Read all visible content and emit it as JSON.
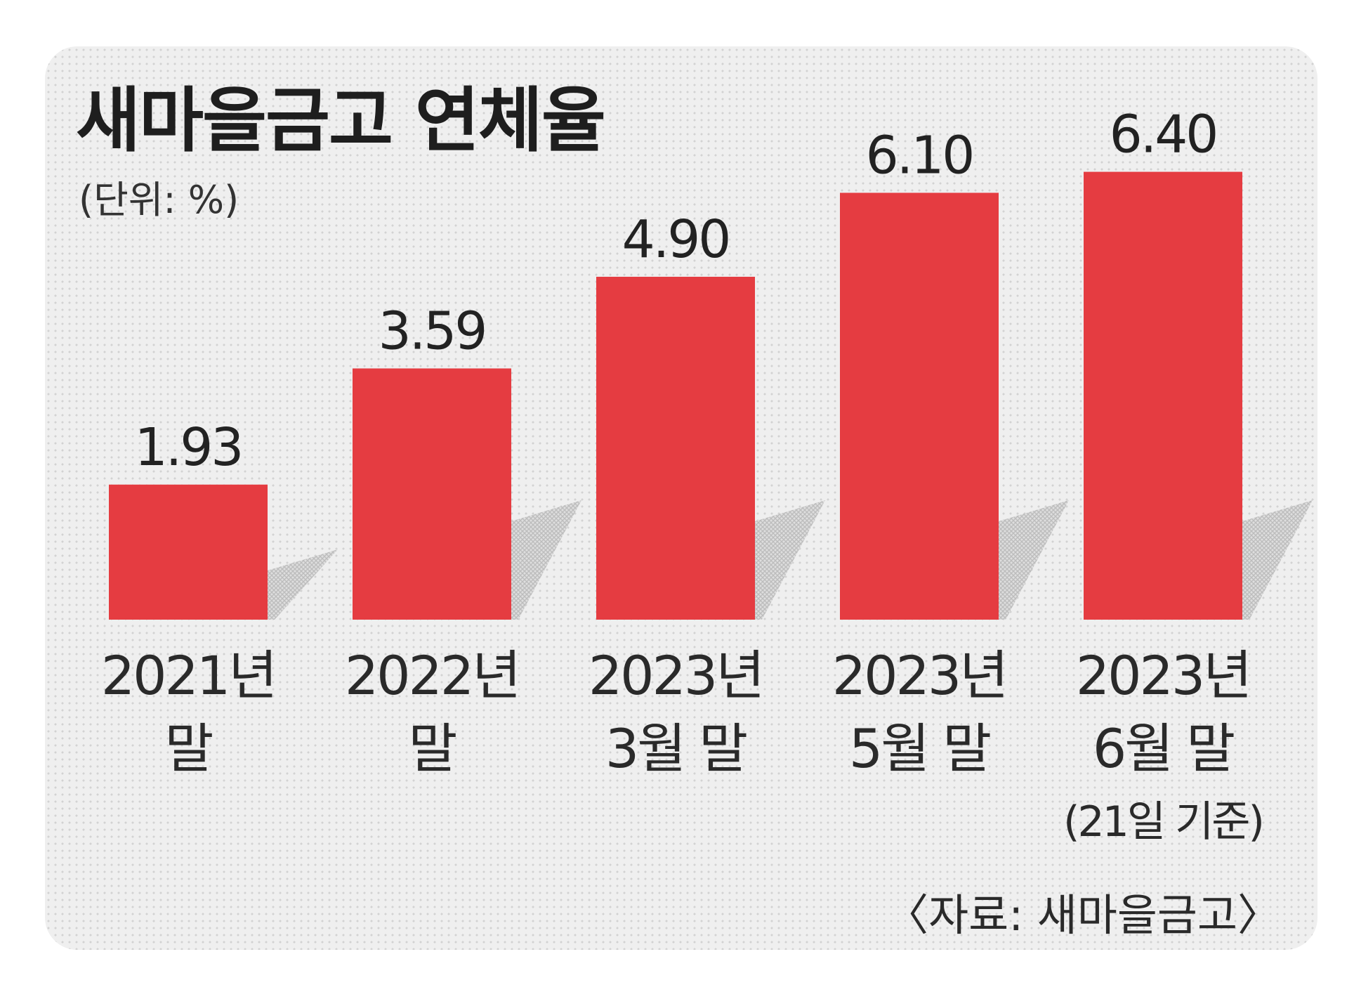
{
  "chart_data": {
    "type": "bar",
    "title": "새마을금고 연체율",
    "unit": "(단위: %)",
    "categories": [
      [
        "2021년",
        "말"
      ],
      [
        "2022년",
        "말"
      ],
      [
        "2023년",
        "3월 말"
      ],
      [
        "2023년",
        "5월 말"
      ],
      [
        "2023년",
        "6월 말",
        "(21일 기준)"
      ]
    ],
    "values": [
      1.93,
      3.59,
      4.9,
      6.1,
      6.4
    ],
    "value_labels": [
      "1.93",
      "3.59",
      "4.90",
      "6.10",
      "6.40"
    ],
    "ylim": [
      0,
      7
    ],
    "bar_color": "#e53c41",
    "shadow_color": "#bdbdbd",
    "source": "〈자료: 새마을금고〉"
  }
}
